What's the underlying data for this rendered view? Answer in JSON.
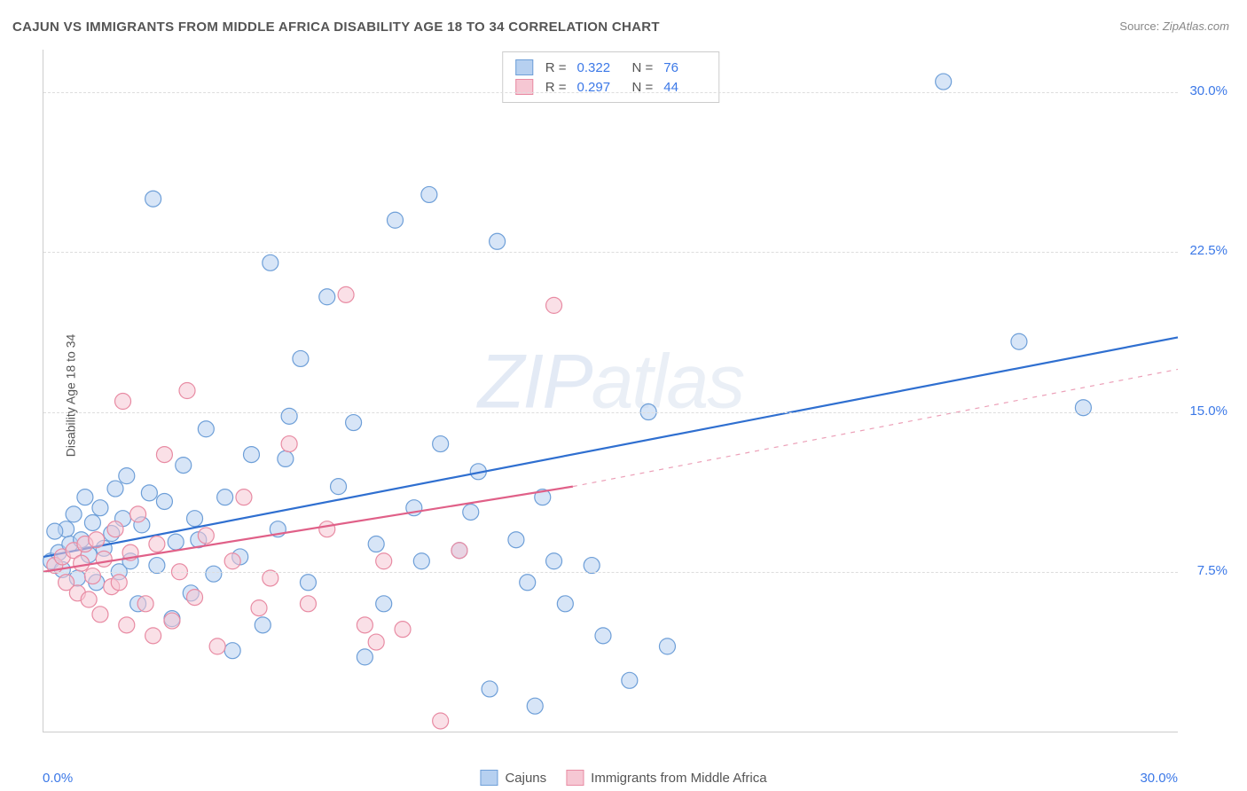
{
  "title": "CAJUN VS IMMIGRANTS FROM MIDDLE AFRICA DISABILITY AGE 18 TO 34 CORRELATION CHART",
  "source_label": "Source:",
  "source_value": "ZipAtlas.com",
  "watermark": "ZIPatlas",
  "ylabel": "Disability Age 18 to 34",
  "chart": {
    "type": "scatter",
    "xlim": [
      0,
      30
    ],
    "ylim": [
      0,
      32
    ],
    "x_ticks": [
      {
        "v": 0,
        "label": "0.0%"
      },
      {
        "v": 30,
        "label": "30.0%"
      }
    ],
    "y_ticks": [
      {
        "v": 7.5,
        "label": "7.5%"
      },
      {
        "v": 15.0,
        "label": "15.0%"
      },
      {
        "v": 22.5,
        "label": "22.5%"
      },
      {
        "v": 30.0,
        "label": "30.0%"
      }
    ],
    "grid_color": "#dddddd",
    "background_color": "#ffffff",
    "marker_radius": 9,
    "marker_opacity": 0.55,
    "series": [
      {
        "id": "cajuns",
        "label": "Cajuns",
        "fill": "#b6d0f0",
        "stroke": "#6e9fd8",
        "line_color": "#2f6fd0",
        "line_width": 2.2,
        "R": "0.322",
        "N": "76",
        "trend": {
          "x1": 0,
          "y1": 8.2,
          "x2": 30,
          "y2": 18.5,
          "dash_from_x": 30
        },
        "points": [
          [
            0.2,
            8.0
          ],
          [
            0.4,
            8.4
          ],
          [
            0.5,
            7.6
          ],
          [
            0.6,
            9.5
          ],
          [
            0.7,
            8.8
          ],
          [
            0.8,
            10.2
          ],
          [
            0.9,
            7.2
          ],
          [
            1.0,
            9.0
          ],
          [
            1.1,
            11.0
          ],
          [
            1.2,
            8.3
          ],
          [
            1.3,
            9.8
          ],
          [
            1.4,
            7.0
          ],
          [
            1.5,
            10.5
          ],
          [
            1.6,
            8.6
          ],
          [
            1.8,
            9.3
          ],
          [
            1.9,
            11.4
          ],
          [
            2.0,
            7.5
          ],
          [
            2.1,
            10.0
          ],
          [
            2.2,
            12.0
          ],
          [
            2.3,
            8.0
          ],
          [
            2.5,
            6.0
          ],
          [
            2.6,
            9.7
          ],
          [
            2.8,
            11.2
          ],
          [
            3.0,
            7.8
          ],
          [
            0.3,
            9.4
          ],
          [
            3.2,
            10.8
          ],
          [
            3.4,
            5.3
          ],
          [
            3.5,
            8.9
          ],
          [
            3.7,
            12.5
          ],
          [
            3.9,
            6.5
          ],
          [
            4.1,
            9.0
          ],
          [
            4.3,
            14.2
          ],
          [
            4.5,
            7.4
          ],
          [
            4.8,
            11.0
          ],
          [
            5.0,
            3.8
          ],
          [
            5.2,
            8.2
          ],
          [
            5.5,
            13.0
          ],
          [
            5.8,
            5.0
          ],
          [
            6.0,
            22.0
          ],
          [
            6.2,
            9.5
          ],
          [
            6.5,
            14.8
          ],
          [
            6.8,
            17.5
          ],
          [
            7.0,
            7.0
          ],
          [
            7.5,
            20.4
          ],
          [
            7.8,
            11.5
          ],
          [
            8.2,
            14.5
          ],
          [
            8.5,
            3.5
          ],
          [
            9.0,
            6.0
          ],
          [
            9.3,
            24.0
          ],
          [
            9.8,
            10.5
          ],
          [
            10.2,
            25.2
          ],
          [
            10.5,
            13.5
          ],
          [
            11.0,
            8.5
          ],
          [
            11.3,
            10.3
          ],
          [
            11.8,
            2.0
          ],
          [
            12.0,
            23.0
          ],
          [
            12.5,
            9.0
          ],
          [
            12.8,
            7.0
          ],
          [
            13.2,
            11.0
          ],
          [
            13.5,
            8.0
          ],
          [
            13.8,
            6.0
          ],
          [
            13.0,
            1.2
          ],
          [
            14.5,
            7.8
          ],
          [
            14.8,
            4.5
          ],
          [
            15.5,
            2.4
          ],
          [
            16.0,
            15.0
          ],
          [
            16.5,
            4.0
          ],
          [
            23.8,
            30.5
          ],
          [
            25.8,
            18.3
          ],
          [
            27.5,
            15.2
          ],
          [
            2.9,
            25.0
          ],
          [
            4.0,
            10.0
          ],
          [
            6.4,
            12.8
          ],
          [
            8.8,
            8.8
          ],
          [
            10.0,
            8.0
          ],
          [
            11.5,
            12.2
          ]
        ]
      },
      {
        "id": "immigrants",
        "label": "Immigrants from Middle Africa",
        "fill": "#f6c7d3",
        "stroke": "#e88ba3",
        "line_color": "#e06088",
        "line_width": 2.2,
        "R": "0.297",
        "N": "44",
        "trend": {
          "x1": 0,
          "y1": 7.5,
          "x2": 14,
          "y2": 11.5,
          "dash_to_x": 30,
          "dash_to_y": 17.0
        },
        "points": [
          [
            0.3,
            7.8
          ],
          [
            0.5,
            8.2
          ],
          [
            0.6,
            7.0
          ],
          [
            0.8,
            8.5
          ],
          [
            0.9,
            6.5
          ],
          [
            1.0,
            7.9
          ],
          [
            1.1,
            8.8
          ],
          [
            1.2,
            6.2
          ],
          [
            1.3,
            7.3
          ],
          [
            1.4,
            9.0
          ],
          [
            1.5,
            5.5
          ],
          [
            1.6,
            8.1
          ],
          [
            1.8,
            6.8
          ],
          [
            1.9,
            9.5
          ],
          [
            2.0,
            7.0
          ],
          [
            2.2,
            5.0
          ],
          [
            2.3,
            8.4
          ],
          [
            2.5,
            10.2
          ],
          [
            2.7,
            6.0
          ],
          [
            2.9,
            4.5
          ],
          [
            3.0,
            8.8
          ],
          [
            3.2,
            13.0
          ],
          [
            3.4,
            5.2
          ],
          [
            3.6,
            7.5
          ],
          [
            3.8,
            16.0
          ],
          [
            4.0,
            6.3
          ],
          [
            4.3,
            9.2
          ],
          [
            4.6,
            4.0
          ],
          [
            5.0,
            8.0
          ],
          [
            5.3,
            11.0
          ],
          [
            5.7,
            5.8
          ],
          [
            6.0,
            7.2
          ],
          [
            6.5,
            13.5
          ],
          [
            7.0,
            6.0
          ],
          [
            7.5,
            9.5
          ],
          [
            8.0,
            20.5
          ],
          [
            8.5,
            5.0
          ],
          [
            9.0,
            8.0
          ],
          [
            9.5,
            4.8
          ],
          [
            10.5,
            0.5
          ],
          [
            11.0,
            8.5
          ],
          [
            13.5,
            20.0
          ],
          [
            8.8,
            4.2
          ],
          [
            2.1,
            15.5
          ]
        ]
      }
    ]
  }
}
